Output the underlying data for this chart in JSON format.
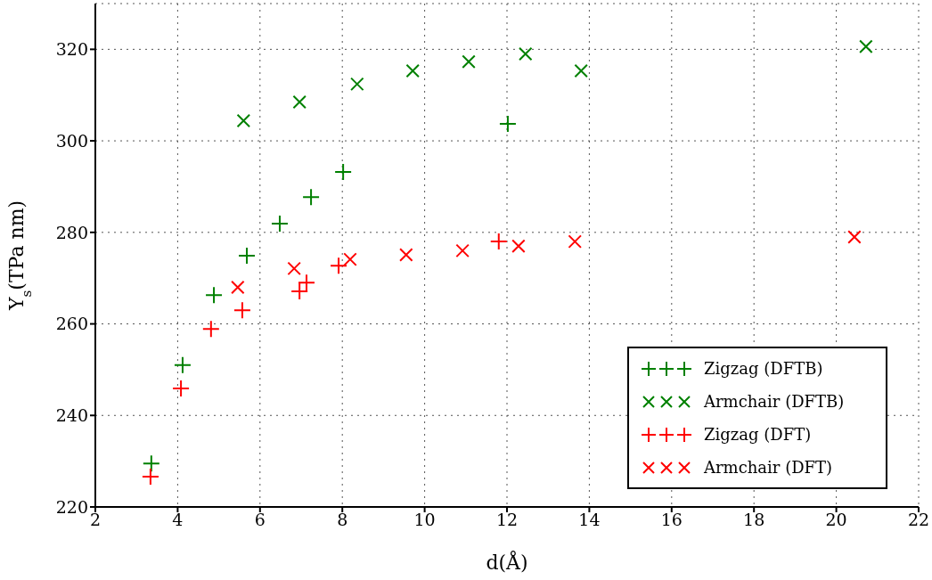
{
  "chart_data": {
    "type": "scatter",
    "xlabel": "d(Å)",
    "ylabel": "Y$_{s}$(TPa nm)",
    "xlim": [
      2,
      22
    ],
    "xticks": [
      2,
      4,
      6,
      8,
      10,
      12,
      14,
      16,
      18,
      20,
      22
    ],
    "ylim": [
      220,
      330
    ],
    "yticks": [
      220,
      240,
      260,
      280,
      300,
      320
    ],
    "grid": true,
    "legend": "bottom right",
    "series": [
      {
        "name": "Zigzag (DFTB)",
        "color": "#008000",
        "marker": "plus",
        "x": [
          3.36,
          4.12,
          4.88,
          5.68,
          6.48,
          7.24,
          8.02,
          12.02
        ],
        "values": [
          229.5,
          251,
          266.3,
          274.9,
          281.9,
          287.7,
          293.2,
          303.7
        ]
      },
      {
        "name": "Armchair (DFTB)",
        "color": "#008000",
        "marker": "cross",
        "x": [
          5.6,
          6.96,
          8.36,
          9.71,
          11.07,
          12.45,
          13.8,
          20.72
        ],
        "values": [
          304.4,
          308.5,
          312.4,
          315.3,
          317.3,
          319,
          315.3,
          320.6
        ]
      },
      {
        "name": "Zigzag (DFT)",
        "color": "#ff0000",
        "marker": "plus",
        "x": [
          3.34,
          4.08,
          4.81,
          5.57,
          6.96,
          7.13,
          7.91,
          11.8
        ],
        "values": [
          226.6,
          245.9,
          258.9,
          263,
          267.1,
          269,
          272.7,
          278
        ]
      },
      {
        "name": "Armchair (DFT)",
        "color": "#ff0000",
        "marker": "cross",
        "x": [
          5.46,
          6.83,
          8.19,
          9.55,
          10.92,
          12.28,
          13.65,
          20.44
        ],
        "values": [
          268,
          272.1,
          274.1,
          275.1,
          276,
          277,
          278,
          279
        ]
      }
    ]
  }
}
